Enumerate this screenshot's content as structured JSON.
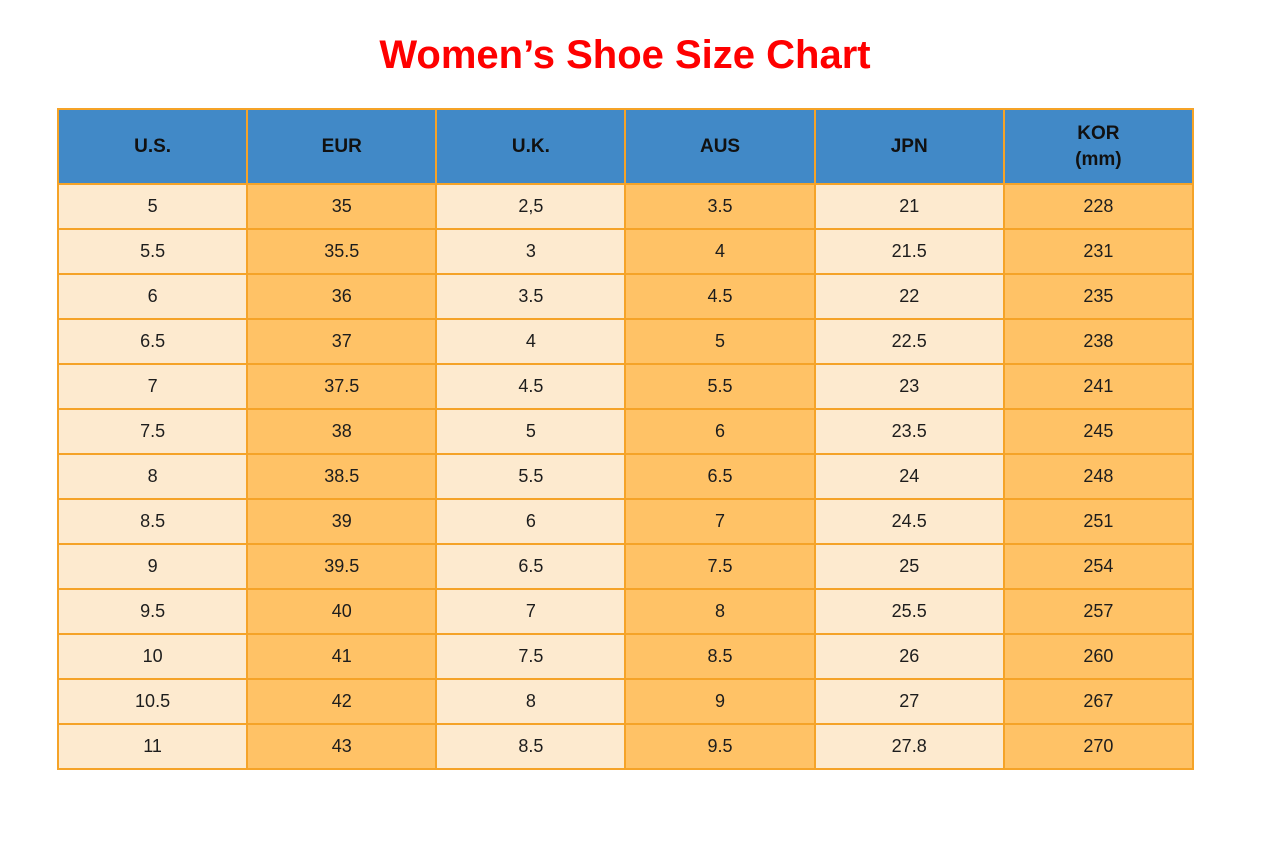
{
  "title": "Women’s Shoe Size Chart",
  "chart_data": {
    "type": "table",
    "title": "Women’s Shoe Size Chart",
    "columns": [
      "U.S.",
      "EUR",
      "U.K.",
      "AUS",
      "JPN",
      "KOR (mm)"
    ],
    "header_lines": [
      [
        "U.S."
      ],
      [
        "EUR"
      ],
      [
        "U.K."
      ],
      [
        "AUS"
      ],
      [
        "JPN"
      ],
      [
        "KOR",
        "(mm)"
      ]
    ],
    "rows": [
      [
        "5",
        "35",
        "2,5",
        "3.5",
        "21",
        "228"
      ],
      [
        "5.5",
        "35.5",
        "3",
        "4",
        "21.5",
        "231"
      ],
      [
        "6",
        "36",
        "3.5",
        "4.5",
        "22",
        "235"
      ],
      [
        "6.5",
        "37",
        "4",
        "5",
        "22.5",
        "238"
      ],
      [
        "7",
        "37.5",
        "4.5",
        "5.5",
        "23",
        "241"
      ],
      [
        "7.5",
        "38",
        "5",
        "6",
        "23.5",
        "245"
      ],
      [
        "8",
        "38.5",
        "5.5",
        "6.5",
        "24",
        "248"
      ],
      [
        "8.5",
        "39",
        "6",
        "7",
        "24.5",
        "251"
      ],
      [
        "9",
        "39.5",
        "6.5",
        "7.5",
        "25",
        "254"
      ],
      [
        "9.5",
        "40",
        "7",
        "8",
        "25.5",
        "257"
      ],
      [
        "10",
        "41",
        "7.5",
        "8.5",
        "26",
        "260"
      ],
      [
        "10.5",
        "42",
        "8",
        "9",
        "27",
        "267"
      ],
      [
        "11",
        "43",
        "8.5",
        "9.5",
        "27.8",
        "270"
      ]
    ]
  },
  "style": {
    "title_color": "#fe0000",
    "header_bg": "#4189c7",
    "header_text_color": "#111111",
    "cell_text_color": "#1d1d1d",
    "border_color": "#f5a328",
    "column_fills": [
      "#fdeacf",
      "#ffc266",
      "#fdeacf",
      "#ffc266",
      "#fdeacf",
      "#ffc266"
    ]
  }
}
